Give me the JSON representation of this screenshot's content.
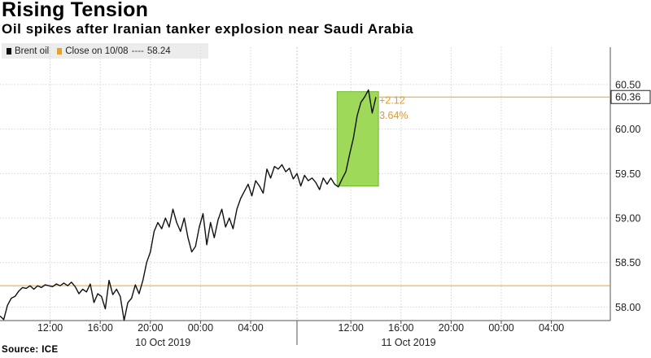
{
  "header": {
    "title": "Rising Tension",
    "subtitle": "Oil spikes after Iranian tanker explosion near Saudi Arabia"
  },
  "legend": {
    "series_label": "Brent oil",
    "reference_label": "Close on 10/08",
    "reference_separator": "----",
    "reference_value": "58.24"
  },
  "source": "Source: ICE",
  "colors": {
    "series": "#111111",
    "reference": "#e9a12b",
    "highlight_fill": "#9ed95a",
    "highlight_stroke": "#6cb82c",
    "grid": "#d6d6d6",
    "last_badge_bg": "#ffffff"
  },
  "chart_data": {
    "type": "line",
    "title": "Rising Tension",
    "subtitle": "Oil spikes after Iranian tanker explosion near Saudi Arabia",
    "xlabel": "",
    "ylabel": "",
    "x_unit": "hours since 10 Oct 2019 08:00",
    "ylim": [
      57.8,
      60.6
    ],
    "yticks": [
      58.0,
      58.5,
      59.0,
      59.5,
      60.0,
      60.5
    ],
    "ytick_labels": [
      "58.00",
      "58.50",
      "59.00",
      "59.50",
      "60.00",
      "60.50"
    ],
    "xticks": [
      {
        "label": "12:00",
        "x": 4
      },
      {
        "label": "16:00",
        "x": 8
      },
      {
        "label": "20:00",
        "x": 12
      },
      {
        "label": "00:00",
        "x": 16
      },
      {
        "label": "04:00",
        "x": 20
      },
      {
        "label": "12:00",
        "x": 28
      },
      {
        "label": "16:00",
        "x": 32
      },
      {
        "label": "20:00",
        "x": 36
      },
      {
        "label": "00:00",
        "x": 40
      },
      {
        "label": "04:00",
        "x": 44
      }
    ],
    "day_labels": [
      {
        "label": "10 Oct 2019",
        "x": 13
      },
      {
        "label": "11 Oct 2019",
        "x": 32.6
      }
    ],
    "day_divider_x": 23.7,
    "xlim": [
      0,
      48.7
    ],
    "grid": true,
    "legend_position": "top-left",
    "reference_line": {
      "name": "Close on 10/08",
      "value": 58.24
    },
    "last_value": 60.36,
    "last_value_label": "60.36",
    "highlight": {
      "x_range": [
        26.9,
        30.2
      ],
      "y_range": [
        59.36,
        60.42
      ],
      "change_label": "+2.12",
      "percent_label": "3.64%"
    },
    "series": [
      {
        "name": "Brent oil",
        "x": [
          0,
          0.3,
          0.6,
          0.9,
          1.2,
          1.5,
          1.8,
          2.1,
          2.4,
          2.7,
          3.0,
          3.3,
          3.6,
          3.9,
          4.2,
          4.5,
          4.8,
          5.1,
          5.4,
          5.7,
          6.0,
          6.3,
          6.6,
          6.9,
          7.2,
          7.5,
          7.8,
          8.1,
          8.4,
          8.7,
          9.0,
          9.3,
          9.6,
          9.9,
          10.2,
          10.5,
          10.8,
          11.1,
          11.4,
          11.7,
          12.0,
          12.3,
          12.6,
          12.9,
          13.2,
          13.5,
          13.8,
          14.1,
          14.4,
          14.7,
          15.0,
          15.3,
          15.6,
          15.9,
          16.2,
          16.5,
          16.8,
          17.1,
          17.4,
          17.7,
          18.0,
          18.3,
          18.6,
          18.9,
          19.2,
          19.5,
          19.8,
          20.1,
          20.4,
          20.7,
          21.0,
          21.3,
          21.6,
          21.9,
          22.2,
          22.5,
          22.8,
          23.1,
          23.4,
          23.7,
          24.0,
          24.3,
          24.6,
          24.9,
          25.2,
          25.5,
          25.8,
          26.1,
          26.4,
          26.7,
          27.0,
          27.3,
          27.6,
          27.9,
          28.2,
          28.5,
          28.8,
          29.1,
          29.4,
          29.7,
          30.0
        ],
        "values": [
          57.9,
          57.86,
          58.02,
          58.1,
          58.12,
          58.18,
          58.22,
          58.21,
          58.24,
          58.2,
          58.24,
          58.22,
          58.25,
          58.24,
          58.23,
          58.26,
          58.24,
          58.27,
          58.24,
          58.28,
          58.23,
          58.15,
          58.2,
          58.17,
          58.26,
          58.05,
          58.15,
          58.12,
          57.98,
          58.3,
          58.14,
          58.2,
          58.12,
          57.85,
          58.05,
          58.1,
          58.25,
          58.15,
          58.3,
          58.5,
          58.62,
          58.85,
          58.95,
          58.88,
          59.0,
          58.9,
          59.1,
          58.95,
          58.85,
          59.0,
          58.78,
          58.62,
          58.68,
          58.9,
          59.05,
          58.7,
          58.95,
          58.78,
          58.98,
          59.1,
          58.9,
          59.0,
          58.88,
          59.1,
          59.22,
          59.3,
          59.38,
          59.25,
          59.42,
          59.36,
          59.28,
          59.55,
          59.45,
          59.58,
          59.55,
          59.6,
          59.52,
          59.56,
          59.44,
          59.5,
          59.36,
          59.48,
          59.42,
          59.45,
          59.4,
          59.32,
          59.45,
          59.38,
          59.45,
          59.38,
          59.35,
          59.44,
          59.52,
          59.72,
          59.9,
          60.15,
          60.3,
          60.36,
          60.44,
          60.18,
          60.36
        ]
      }
    ]
  }
}
